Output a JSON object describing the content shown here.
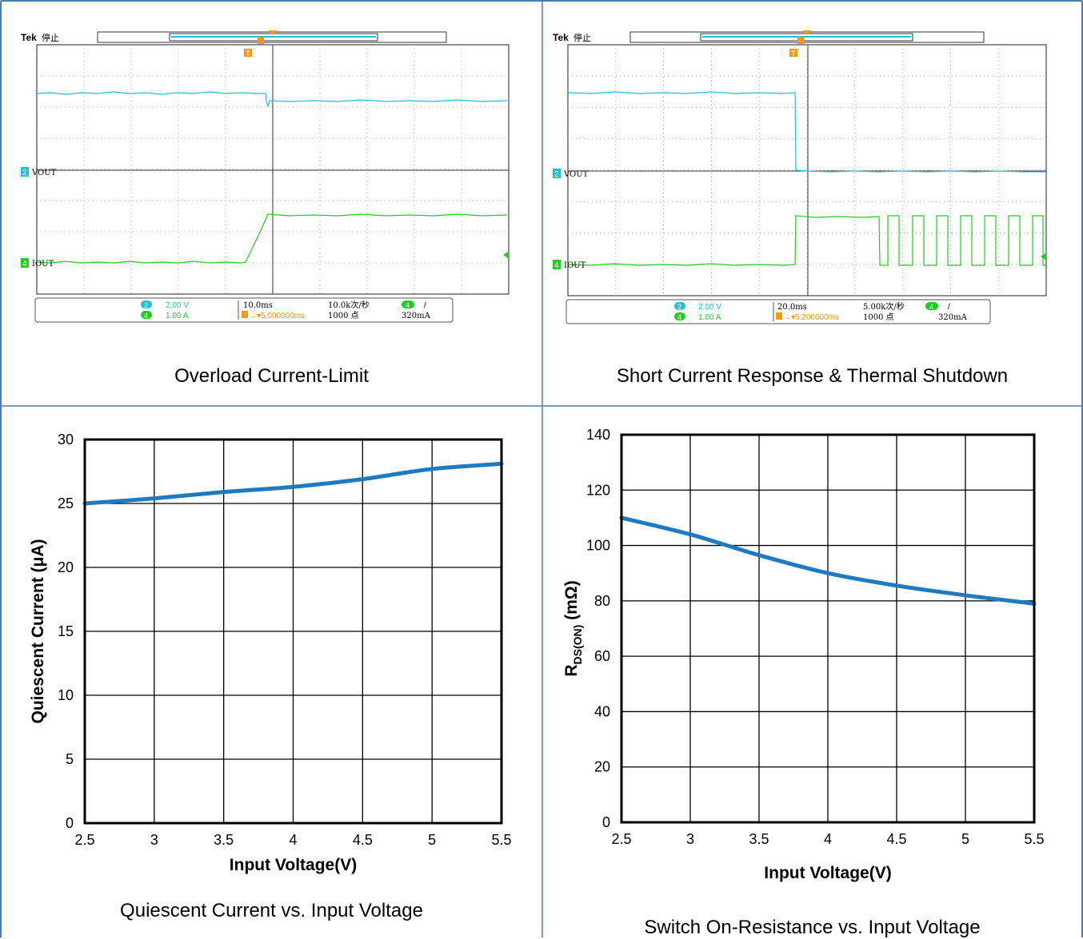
{
  "panels": {
    "overload": {
      "caption": "Overload Current-Limit",
      "scope": {
        "brand": "Tek",
        "status": "停止",
        "ch2_scale": "2.00 V",
        "ch4_scale": "1.00 A",
        "timebase": "10.0ms",
        "sample_rate": "10.0k次/秒",
        "trigger_delay": "5.000000ms",
        "record_length": "1000 点",
        "trigger_level": "320mA",
        "trigger_slope": "/",
        "ch2_badge": "2",
        "ch4_badge": "4",
        "ch2_label": "VOUT",
        "ch4_label": "IOUT",
        "trig_marker": "T"
      }
    },
    "short": {
      "caption": "Short Current Response & Thermal Shutdown",
      "scope": {
        "brand": "Tek",
        "status": "停止",
        "ch2_scale": "2.00 V",
        "ch4_scale": "1.00 A",
        "timebase": "20.0ms",
        "sample_rate": "5.00k次/秒",
        "trigger_delay": "5.200000ms",
        "record_length": "1000 点",
        "trigger_level": "320mA",
        "trigger_slope": "/",
        "ch2_badge": "2",
        "ch4_badge": "4",
        "ch2_label": "VOUT",
        "ch4_label": "IOUT",
        "trig_marker": "T"
      }
    },
    "iq": {
      "caption": "Quiescent Current vs. Input Voltage"
    },
    "rds": {
      "caption": "Switch On-Resistance vs. Input Voltage"
    }
  },
  "colors": {
    "border": "#4a7bb7",
    "ch2": "#22c0d8",
    "ch4": "#22cc22",
    "trigger": "#f59a0c",
    "curve": "#1f7ac0"
  },
  "chart_data": [
    {
      "type": "line",
      "xlabel": "Input Voltage(V)",
      "ylabel": "Quiescent Current (μA)",
      "xlim": [
        2.5,
        5.5
      ],
      "ylim": [
        0,
        30
      ],
      "x_ticks": [
        "2.5",
        "3",
        "3.5",
        "4",
        "4.5",
        "5",
        "5.5"
      ],
      "y_ticks": [
        "0",
        "5",
        "10",
        "15",
        "20",
        "25",
        "30"
      ],
      "grid": true,
      "series": [
        {
          "x": [
            2.5,
            3.0,
            3.5,
            4.0,
            4.5,
            5.0,
            5.5
          ],
          "y": [
            25.0,
            25.4,
            25.9,
            26.3,
            26.9,
            27.7,
            28.1
          ]
        }
      ]
    },
    {
      "type": "line",
      "xlabel": "Input Voltage(V)",
      "ylabel_main": "R",
      "ylabel_sub": "DS(ON)",
      "ylabel_unit": " (mΩ)",
      "xlim": [
        2.5,
        5.5
      ],
      "ylim": [
        0,
        140
      ],
      "x_ticks": [
        "2.5",
        "3",
        "3.5",
        "4",
        "4.5",
        "5",
        "5.5"
      ],
      "y_ticks": [
        "0",
        "20",
        "40",
        "60",
        "80",
        "100",
        "120",
        "140"
      ],
      "grid": true,
      "series": [
        {
          "x": [
            2.5,
            3.0,
            3.5,
            4.0,
            4.5,
            5.0,
            5.5
          ],
          "y": [
            110,
            104,
            96.5,
            90,
            85.5,
            82,
            79
          ]
        }
      ]
    }
  ]
}
